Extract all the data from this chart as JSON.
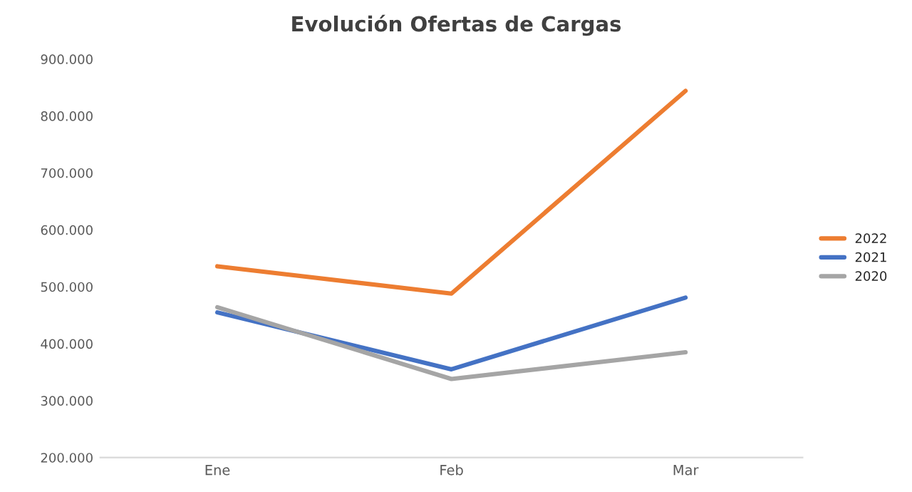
{
  "chart_data": {
    "type": "line",
    "title": "Evolución Ofertas de Cargas",
    "categories": [
      "Ene",
      "Feb",
      "Mar"
    ],
    "series": [
      {
        "name": "2022",
        "color": "#ed7d31",
        "values": [
          536000,
          488000,
          844000
        ]
      },
      {
        "name": "2021",
        "color": "#4472c4",
        "values": [
          455000,
          355000,
          481000
        ]
      },
      {
        "name": "2020",
        "color": "#a5a5a5",
        "values": [
          464000,
          338000,
          385000
        ]
      }
    ],
    "ylim": [
      200000,
      900000
    ],
    "yticks": [
      {
        "value": 200000,
        "label": "200.000"
      },
      {
        "value": 300000,
        "label": "300.000"
      },
      {
        "value": 400000,
        "label": "400.000"
      },
      {
        "value": 500000,
        "label": "500.000"
      },
      {
        "value": 600000,
        "label": "600.000"
      },
      {
        "value": 700000,
        "label": "700.000"
      },
      {
        "value": 800000,
        "label": "800.000"
      },
      {
        "value": 900000,
        "label": "900.000"
      }
    ],
    "grid": false,
    "legend": "right",
    "marker": "none",
    "line_style": "solid"
  }
}
